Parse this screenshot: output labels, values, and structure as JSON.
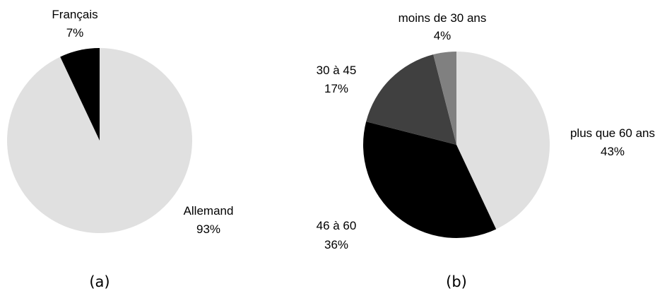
{
  "chart_data": [
    {
      "type": "pie",
      "caption": "(a)",
      "colors": [
        "#e0e0e0",
        "#000000"
      ],
      "slices": [
        {
          "label": "Allemand",
          "value": 93,
          "value_label": "93%",
          "color": "#e0e0e0"
        },
        {
          "label": "Français",
          "value": 7,
          "value_label": "7%",
          "color": "#000000"
        }
      ]
    },
    {
      "type": "pie",
      "caption": "(b)",
      "colors": [
        "#e0e0e0",
        "#000000",
        "#404040",
        "#808080"
      ],
      "slices": [
        {
          "label": "plus que 60 ans",
          "value": 43,
          "value_label": "43%",
          "color": "#e0e0e0"
        },
        {
          "label": "46 à 60",
          "value": 36,
          "value_label": "36%",
          "color": "#000000"
        },
        {
          "label": "30 à 45",
          "value": 17,
          "value_label": "17%",
          "color": "#404040"
        },
        {
          "label": "moins de 30 ans",
          "value": 4,
          "value_label": "4%",
          "color": "#808080"
        }
      ]
    }
  ]
}
